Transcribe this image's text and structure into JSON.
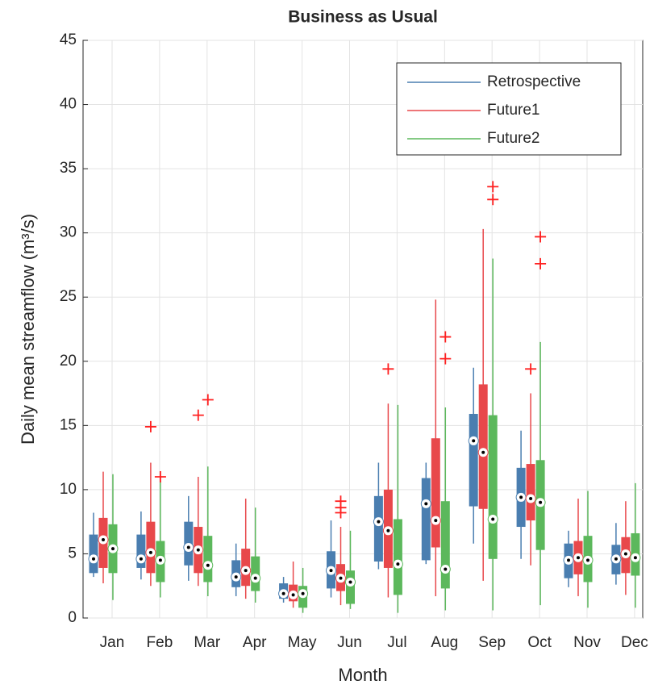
{
  "chart_data": {
    "type": "box",
    "title": "Business as Usual",
    "xlabel": "Month",
    "ylabel": "Daily mean streamflow (m³/s)",
    "categories": [
      "Jan",
      "Feb",
      "Mar",
      "Apr",
      "May",
      "Jun",
      "Jul",
      "Aug",
      "Sep",
      "Oct",
      "Nov",
      "Dec"
    ],
    "ylim": [
      0,
      45
    ],
    "yticks": [
      0,
      5,
      10,
      15,
      20,
      25,
      30,
      35,
      40,
      45
    ],
    "grid": true,
    "legend": "upper right",
    "series": [
      {
        "name": "Retrospective",
        "color": "#4a7eb0",
        "low": [
          3.2,
          3.0,
          2.9,
          1.7,
          1.2,
          1.6,
          3.8,
          4.2,
          5.8,
          4.6,
          2.4,
          2.6
        ],
        "q1": [
          3.5,
          3.9,
          4.1,
          2.4,
          1.5,
          2.3,
          4.4,
          4.5,
          8.7,
          7.1,
          3.1,
          3.4
        ],
        "median": [
          4.6,
          4.6,
          5.5,
          3.2,
          1.9,
          3.7,
          7.5,
          8.9,
          13.8,
          9.4,
          4.5,
          4.6
        ],
        "q3": [
          6.5,
          6.5,
          7.5,
          4.5,
          2.7,
          5.2,
          9.5,
          10.9,
          15.9,
          11.7,
          5.8,
          5.7
        ],
        "high": [
          8.2,
          8.3,
          9.5,
          5.8,
          3.2,
          7.6,
          12.1,
          12.1,
          19.5,
          14.6,
          6.8,
          7.4
        ],
        "outliers": [
          [],
          [],
          [],
          [],
          [],
          [],
          [],
          [],
          [],
          [],
          [],
          []
        ]
      },
      {
        "name": "Future1",
        "color": "#e8484b",
        "low": [
          2.7,
          2.5,
          2.5,
          1.5,
          0.8,
          1.0,
          1.6,
          1.7,
          2.9,
          4.1,
          1.7,
          1.8
        ],
        "q1": [
          3.9,
          3.5,
          3.5,
          2.5,
          1.3,
          2.1,
          3.9,
          5.5,
          8.5,
          7.6,
          3.4,
          3.5
        ],
        "median": [
          6.1,
          5.1,
          5.3,
          3.7,
          1.8,
          3.1,
          6.8,
          7.6,
          12.9,
          9.3,
          4.7,
          5.0
        ],
        "q3": [
          7.8,
          7.5,
          7.1,
          5.4,
          2.6,
          4.2,
          10.0,
          14.0,
          18.2,
          12.0,
          6.0,
          6.3
        ],
        "high": [
          11.4,
          12.1,
          11.0,
          9.3,
          4.4,
          7.1,
          16.7,
          24.8,
          30.3,
          17.5,
          9.3,
          9.1
        ],
        "outliers": [
          [],
          [
            14.9
          ],
          [
            15.8
          ],
          [],
          [],
          [
            8.2,
            8.6,
            9.1
          ],
          [
            19.4
          ],
          [],
          [],
          [
            19.4
          ],
          [],
          []
        ]
      },
      {
        "name": "Future2",
        "color": "#5cb85c",
        "low": [
          1.4,
          1.6,
          1.7,
          1.2,
          0.4,
          0.7,
          0.4,
          0.6,
          0.6,
          1.0,
          0.8,
          0.8
        ],
        "q1": [
          3.5,
          2.8,
          2.8,
          2.1,
          0.8,
          1.1,
          1.8,
          2.3,
          4.6,
          5.3,
          2.8,
          3.3
        ],
        "median": [
          5.4,
          4.5,
          4.1,
          3.1,
          1.9,
          2.8,
          4.2,
          3.8,
          7.7,
          9.0,
          4.5,
          4.7
        ],
        "q3": [
          7.3,
          6.0,
          6.4,
          4.8,
          2.5,
          3.7,
          7.7,
          9.1,
          15.8,
          12.3,
          6.4,
          6.6
        ],
        "high": [
          11.2,
          10.7,
          11.8,
          8.6,
          3.9,
          6.8,
          16.6,
          16.4,
          28.0,
          21.5,
          9.9,
          10.5
        ],
        "outliers": [
          [],
          [
            11.0
          ],
          [
            17.0
          ],
          [],
          [],
          [],
          [],
          [
            20.2,
            21.9
          ],
          [
            32.6,
            33.6
          ],
          [
            27.6,
            29.7
          ],
          [],
          []
        ]
      }
    ]
  }
}
